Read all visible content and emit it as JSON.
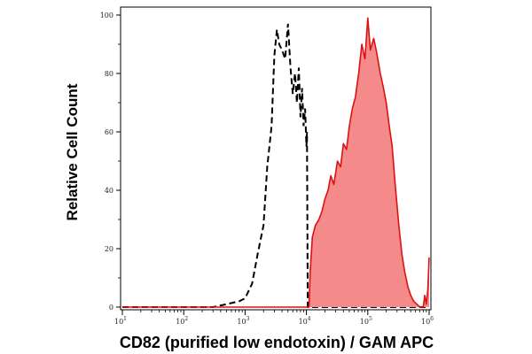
{
  "chart_data": {
    "type": "area",
    "xlabel": "CD82 (purified low endotoxin) / GAM APC",
    "ylabel": "Relative Cell Count",
    "x_scale": "log",
    "xlim": [
      10,
      1000000
    ],
    "ylim": [
      0,
      100
    ],
    "y_ticks": [
      0,
      20,
      40,
      60,
      80,
      100
    ],
    "x_tick_labels": [
      {
        "base": "10",
        "exp": "1",
        "value": 10
      },
      {
        "base": "10",
        "exp": "2",
        "value": 100
      },
      {
        "base": "10",
        "exp": "3",
        "value": 1000
      },
      {
        "base": "10",
        "exp": "4",
        "value": 10000
      },
      {
        "base": "10",
        "exp": "5",
        "value": 100000
      },
      {
        "base": "10",
        "exp": "6",
        "value": 1000000
      }
    ],
    "grid": false,
    "series": [
      {
        "style": "dashed-black-line",
        "color": "#000000",
        "x": [
          10,
          300,
          500,
          800,
          1000,
          1300,
          1600,
          2000,
          2300,
          2700,
          3000,
          3300,
          3600,
          4000,
          4500,
          5000,
          5500,
          6000,
          6500,
          7000,
          7500,
          8000,
          8500,
          9000,
          9500,
          10000,
          10200,
          10500,
          1000000
        ],
        "y": [
          0,
          0,
          1,
          2,
          3,
          8,
          18,
          28,
          48,
          62,
          86,
          95,
          90,
          88,
          85,
          97,
          82,
          73,
          80,
          70,
          82,
          65,
          75,
          62,
          68,
          55,
          60,
          0,
          0
        ]
      },
      {
        "style": "filled-red-area",
        "color": "#dd1111",
        "fill": "#f48a8a",
        "x": [
          10,
          10000,
          11000,
          11500,
          12500,
          14000,
          16000,
          18000,
          20000,
          22500,
          25000,
          28000,
          32000,
          36000,
          40000,
          45000,
          50000,
          56000,
          63000,
          71000,
          80000,
          90000,
          100000,
          110000,
          125000,
          140000,
          160000,
          180000,
          200000,
          224000,
          250000,
          280000,
          320000,
          360000,
          400000,
          450000,
          500000,
          560000,
          630000,
          710000,
          800000,
          850000,
          900000,
          950000,
          1000000
        ],
        "y": [
          0,
          0,
          0,
          12,
          24,
          28,
          30,
          33,
          37,
          40,
          45,
          42,
          50,
          48,
          56,
          54,
          62,
          68,
          72,
          80,
          90,
          85,
          99,
          88,
          92,
          87,
          80,
          75,
          70,
          62,
          55,
          42,
          28,
          18,
          12,
          7,
          4,
          2,
          1,
          0,
          0,
          4,
          1,
          6,
          17
        ]
      }
    ]
  }
}
